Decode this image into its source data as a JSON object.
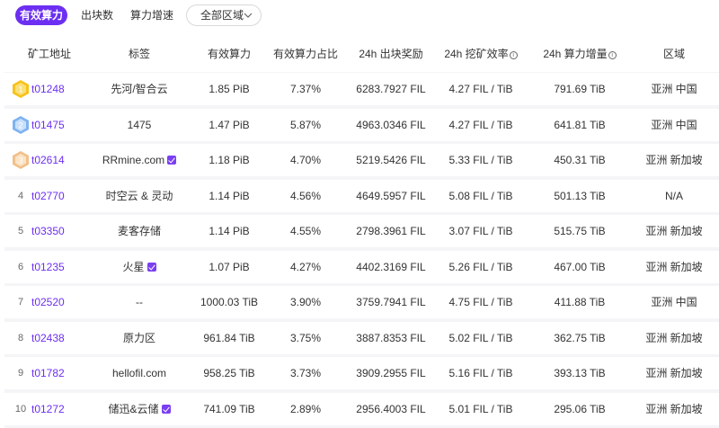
{
  "tabs": [
    {
      "label": "有效算力",
      "active": true
    },
    {
      "label": "出块数",
      "active": false
    },
    {
      "label": "算力增速",
      "active": false
    }
  ],
  "region_select": {
    "selected": "全部区域"
  },
  "colors": {
    "accent": "#6c2ff2",
    "gold": "#f7c21b",
    "silver": "#9ec7f7",
    "bronze": "#f6d3a8"
  },
  "table": {
    "headers": {
      "address": "矿工地址",
      "tag": "标签",
      "power": "有效算力",
      "ratio": "有效算力占比",
      "reward": "24h 出块奖励",
      "efficiency": "24h 挖矿效率",
      "growth": "24h 算力增量",
      "region": "区域"
    },
    "rows": [
      {
        "rank": "1",
        "medal": "gold",
        "address": "t01248",
        "tag": "先河/智合云",
        "verified": false,
        "power": "1.85 PiB",
        "ratio": "7.37%",
        "reward": "6283.7927 FIL",
        "efficiency": "4.27 FIL / TiB",
        "growth": "791.69 TiB",
        "region": "亚洲 中国"
      },
      {
        "rank": "2",
        "medal": "silver",
        "address": "t01475",
        "tag": "1475",
        "verified": false,
        "power": "1.47 PiB",
        "ratio": "5.87%",
        "reward": "4963.0346 FIL",
        "efficiency": "4.27 FIL / TiB",
        "growth": "641.81 TiB",
        "region": "亚洲 中国"
      },
      {
        "rank": "3",
        "medal": "bronze",
        "address": "t02614",
        "tag": "RRmine.com",
        "verified": true,
        "power": "1.18 PiB",
        "ratio": "4.70%",
        "reward": "5219.5426 FIL",
        "efficiency": "5.33 FIL / TiB",
        "growth": "450.31 TiB",
        "region": "亚洲 新加坡"
      },
      {
        "rank": "4",
        "medal": "",
        "address": "t02770",
        "tag": "时空云 & 灵动",
        "verified": false,
        "power": "1.14 PiB",
        "ratio": "4.56%",
        "reward": "4649.5957 FIL",
        "efficiency": "5.08 FIL / TiB",
        "growth": "501.13 TiB",
        "region": "N/A"
      },
      {
        "rank": "5",
        "medal": "",
        "address": "t03350",
        "tag": "麦客存储",
        "verified": false,
        "power": "1.14 PiB",
        "ratio": "4.55%",
        "reward": "2798.3961 FIL",
        "efficiency": "3.07 FIL / TiB",
        "growth": "515.75 TiB",
        "region": "亚洲 新加坡"
      },
      {
        "rank": "6",
        "medal": "",
        "address": "t01235",
        "tag": "火星",
        "verified": true,
        "power": "1.07 PiB",
        "ratio": "4.27%",
        "reward": "4402.3169 FIL",
        "efficiency": "5.26 FIL / TiB",
        "growth": "467.00 TiB",
        "region": "亚洲 新加坡"
      },
      {
        "rank": "7",
        "medal": "",
        "address": "t02520",
        "tag": "--",
        "verified": false,
        "power": "1000.03 TiB",
        "ratio": "3.90%",
        "reward": "3759.7941 FIL",
        "efficiency": "4.75 FIL / TiB",
        "growth": "411.88 TiB",
        "region": "亚洲 中国"
      },
      {
        "rank": "8",
        "medal": "",
        "address": "t02438",
        "tag": "原力区",
        "verified": false,
        "power": "961.84 TiB",
        "ratio": "3.75%",
        "reward": "3887.8353 FIL",
        "efficiency": "5.02 FIL / TiB",
        "growth": "362.75 TiB",
        "region": "亚洲 新加坡"
      },
      {
        "rank": "9",
        "medal": "",
        "address": "t01782",
        "tag": "hellofil.com",
        "verified": false,
        "power": "958.25 TiB",
        "ratio": "3.73%",
        "reward": "3909.2955 FIL",
        "efficiency": "5.16 FIL / TiB",
        "growth": "393.13 TiB",
        "region": "亚洲 新加坡"
      },
      {
        "rank": "10",
        "medal": "",
        "address": "t01272",
        "tag": "储迅&云储",
        "verified": true,
        "power": "741.09 TiB",
        "ratio": "2.89%",
        "reward": "2956.4003 FIL",
        "efficiency": "5.01 FIL / TiB",
        "growth": "295.06 TiB",
        "region": "亚洲 新加坡"
      }
    ]
  }
}
